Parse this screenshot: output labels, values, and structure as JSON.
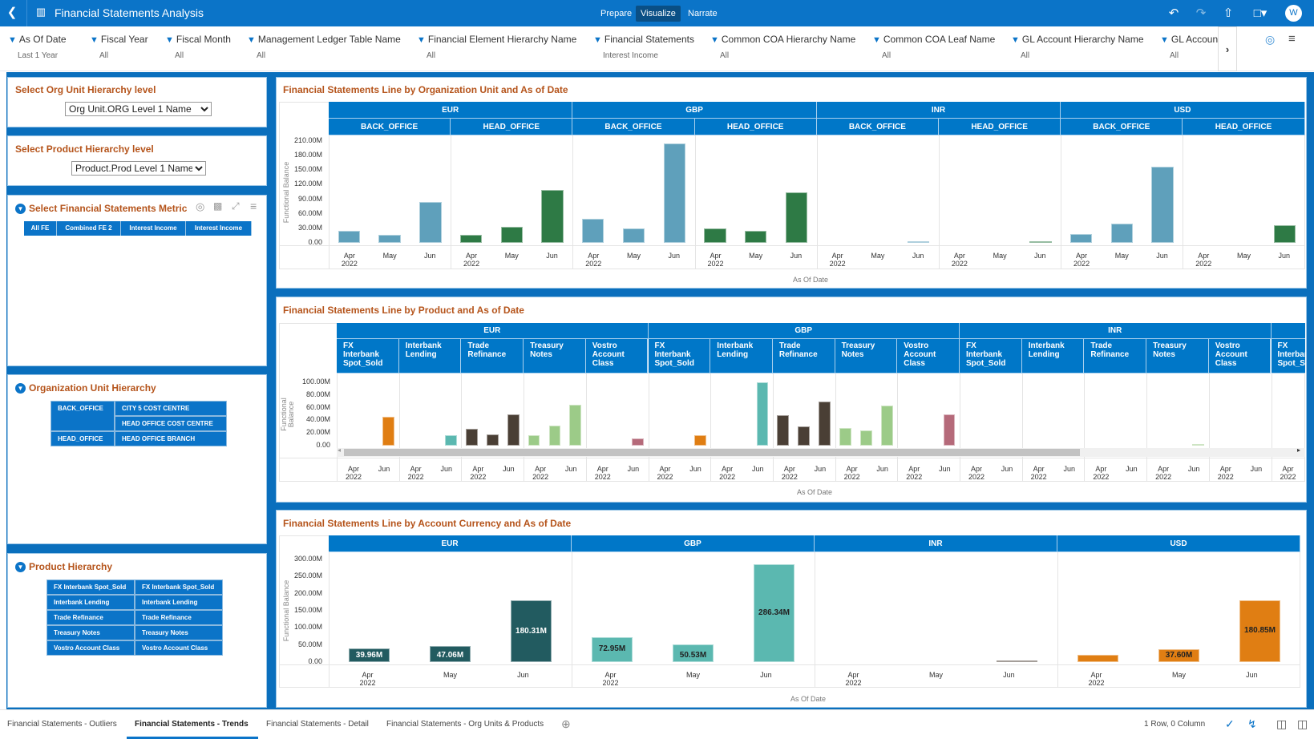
{
  "app": {
    "title": "Financial Statements Analysis",
    "modes": [
      "Prepare",
      "Visualize",
      "Narrate"
    ],
    "active_mode": "Visualize",
    "user_initial": "W"
  },
  "icons": {
    "back": "chevron-left-icon",
    "app": "chart-icon",
    "undo": "undo-icon",
    "redo": "redo-icon",
    "export": "export-icon",
    "save": "save-icon",
    "filter_pin": "pin-icon",
    "more_filters": "chevron-right-icon",
    "presentation": "badge-icon",
    "menu": "hamburger-icon"
  },
  "filters": [
    {
      "label": "As Of Date",
      "value": "Last 1 Year"
    },
    {
      "label": "Fiscal Year",
      "value": "All"
    },
    {
      "label": "Fiscal Month",
      "value": "All"
    },
    {
      "label": "Management Ledger Table Name",
      "value": "All"
    },
    {
      "label": "Financial Element Hierarchy Name",
      "value": "All"
    },
    {
      "label": "Financial Statements",
      "value": "Interest Income"
    },
    {
      "label": "Common COA Hierarchy Name",
      "value": "All"
    },
    {
      "label": "Common COA Leaf Name",
      "value": "All"
    },
    {
      "label": "GL Account Hierarchy Name",
      "value": "All"
    },
    {
      "label": "GL Account",
      "value": "All"
    }
  ],
  "left": {
    "org_level": {
      "title": "Select Org Unit Hierarchy level",
      "selected": "Org Unit.ORG Level 1 Name"
    },
    "product_level": {
      "title": "Select Product Hierarchy level",
      "selected": "Product.Prod Level 1 Name"
    },
    "metric": {
      "title": "Select Financial Statements Metric",
      "buttons": [
        "All FE",
        "Combined FE 2",
        "Interest Income",
        "Interest Income"
      ]
    },
    "org_hierarchy": {
      "title": "Organization Unit Hierarchy",
      "rows": [
        [
          "BACK_OFFICE",
          "CITY 5 COST CENTRE"
        ],
        [
          "",
          "HEAD OFFICE COST CENTRE"
        ],
        [
          "HEAD_OFFICE",
          "HEAD OFFICE BRANCH"
        ]
      ]
    },
    "product_hierarchy": {
      "title": "Product Hierarchy",
      "rows": [
        [
          "FX Interbank Spot_Sold",
          "FX Interbank Spot_Sold"
        ],
        [
          "Interbank Lending",
          "Interbank Lending"
        ],
        [
          "Trade Refinance",
          "Trade Refinance"
        ],
        [
          "Treasury Notes",
          "Treasury Notes"
        ],
        [
          "Vostro Account Class",
          "Vostro Account Class"
        ]
      ]
    }
  },
  "colors": {
    "accent": "#0b74c8",
    "header": "#0077c8",
    "title": "#b5541b",
    "BACK_OFFICE": "#5fa0bb",
    "HEAD_OFFICE": "#2e7a45",
    "FX Interbank Spot_Sold": "#e07e13",
    "Interbank Lending": "#5bb8b0",
    "Trade Refinance": "#4a3f35",
    "Treasury Notes": "#9ccb88",
    "Vostro Account Class": "#b56a7a",
    "EUR": "#225b60",
    "GBP": "#5bb8b0",
    "INR": "#4a3f35",
    "USD": "#e07e13"
  },
  "chart_data": [
    {
      "type": "bar",
      "title": "Financial Statements Line by Organization Unit and As of Date",
      "ylabel": "Functional Balance",
      "xlabel": "As Of Date",
      "ylim": [
        0,
        210
      ],
      "grid": false,
      "yticks": [
        {
          "value": 210,
          "label": "210.00M"
        },
        {
          "value": 180,
          "label": "180.00M"
        },
        {
          "value": 150,
          "label": "150.00M"
        },
        {
          "value": 120,
          "label": "120.00M"
        },
        {
          "value": 90,
          "label": "90.00M"
        },
        {
          "value": 60,
          "label": "60.00M"
        },
        {
          "value": 30,
          "label": "30.00M"
        },
        {
          "value": 0,
          "label": "0.00"
        }
      ],
      "x": [
        {
          "label": "Apr",
          "sub": "2022"
        },
        {
          "label": "May",
          "sub": ""
        },
        {
          "label": "Jun",
          "sub": ""
        }
      ],
      "groups": [
        {
          "name": "EUR",
          "subgroups": [
            {
              "name": "BACK_OFFICE",
              "values": [
                25,
                17,
                85
              ]
            },
            {
              "name": "HEAD_OFFICE",
              "values": [
                17,
                33,
                109
              ]
            }
          ]
        },
        {
          "name": "GBP",
          "subgroups": [
            {
              "name": "BACK_OFFICE",
              "values": [
                49,
                30,
                205
              ]
            },
            {
              "name": "HEAD_OFFICE",
              "values": [
                30,
                24,
                104
              ]
            }
          ]
        },
        {
          "name": "INR",
          "subgroups": [
            {
              "name": "BACK_OFFICE",
              "values": [
                null,
                null,
                1
              ]
            },
            {
              "name": "HEAD_OFFICE",
              "values": [
                null,
                null,
                1
              ]
            }
          ]
        },
        {
          "name": "USD",
          "subgroups": [
            {
              "name": "BACK_OFFICE",
              "values": [
                19,
                40,
                157
              ]
            },
            {
              "name": "HEAD_OFFICE",
              "values": [
                null,
                null,
                37
              ]
            }
          ]
        }
      ]
    },
    {
      "type": "bar",
      "title": "Financial Statements Line by Product and As of Date",
      "ylabel": "Functional Balance",
      "xlabel": "As Of Date",
      "ylim": [
        0,
        100
      ],
      "grid": false,
      "yticks": [
        {
          "value": 100,
          "label": "100.00M"
        },
        {
          "value": 80,
          "label": "80.00M"
        },
        {
          "value": 60,
          "label": "60.00M"
        },
        {
          "value": 40,
          "label": "40.00M"
        },
        {
          "value": 20,
          "label": "20.00M"
        },
        {
          "value": 0,
          "label": "0.00"
        }
      ],
      "x": [
        {
          "label": "Apr",
          "sub": "2022"
        },
        null,
        {
          "label": "Jun",
          "sub": ""
        }
      ],
      "groups": [
        {
          "name": "EUR",
          "subgroups": [
            {
              "name": "FX Interbank Spot_Sold",
              "values": [
                null,
                null,
                46
              ]
            },
            {
              "name": "Interbank Lending",
              "values": [
                null,
                null,
                16
              ]
            },
            {
              "name": "Trade Refinance",
              "values": [
                26,
                18,
                50
              ]
            },
            {
              "name": "Treasury Notes",
              "values": [
                16,
                32,
                64
              ]
            },
            {
              "name": "Vostro Account Class",
              "values": [
                null,
                null,
                12
              ]
            }
          ]
        },
        {
          "name": "GBP",
          "subgroups": [
            {
              "name": "FX Interbank Spot_Sold",
              "values": [
                null,
                null,
                16
              ]
            },
            {
              "name": "Interbank Lending",
              "values": [
                null,
                null,
                100
              ]
            },
            {
              "name": "Trade Refinance",
              "values": [
                48,
                30,
                70
              ]
            },
            {
              "name": "Treasury Notes",
              "values": [
                28,
                24,
                63
              ]
            },
            {
              "name": "Vostro Account Class",
              "values": [
                null,
                null,
                50
              ]
            }
          ]
        },
        {
          "name": "INR",
          "subgroups": [
            {
              "name": "FX Interbank Spot_Sold",
              "values": [
                null,
                null,
                null
              ]
            },
            {
              "name": "Interbank Lending",
              "values": [
                null,
                null,
                null
              ]
            },
            {
              "name": "Trade Refinance",
              "values": [
                null,
                null,
                null
              ]
            },
            {
              "name": "Treasury Notes",
              "values": [
                null,
                null,
                1
              ]
            },
            {
              "name": "Vostro Account Class",
              "values": [
                null,
                null,
                null
              ]
            }
          ]
        },
        {
          "name": "",
          "subgroups": [
            {
              "name": "FX Interbank Spot_Sold",
              "values": [
                null,
                null,
                null
              ]
            }
          ]
        }
      ]
    },
    {
      "type": "bar",
      "title": "Financial Statements Line by Account Currency and As of Date",
      "ylabel": "Functional Balance",
      "xlabel": "As Of Date",
      "ylim": [
        0,
        300
      ],
      "grid": false,
      "yticks": [
        {
          "value": 300,
          "label": "300.00M"
        },
        {
          "value": 250,
          "label": "250.00M"
        },
        {
          "value": 200,
          "label": "200.00M"
        },
        {
          "value": 150,
          "label": "150.00M"
        },
        {
          "value": 100,
          "label": "100.00M"
        },
        {
          "value": 50,
          "label": "50.00M"
        },
        {
          "value": 0,
          "label": "0.00"
        }
      ],
      "x": [
        {
          "label": "Apr",
          "sub": "2022"
        },
        {
          "label": "May",
          "sub": ""
        },
        {
          "label": "Jun",
          "sub": ""
        }
      ],
      "groups": [
        {
          "name": "EUR",
          "subgroups": [
            {
              "name": "EUR",
              "values": [
                39.96,
                47.06,
                180.31
              ],
              "labels": [
                "39.96M",
                "47.06M",
                "180.31M"
              ]
            }
          ]
        },
        {
          "name": "GBP",
          "subgroups": [
            {
              "name": "GBP",
              "values": [
                72.95,
                50.53,
                286.34
              ],
              "labels": [
                "72.95M",
                "50.53M",
                "286.34M"
              ]
            }
          ]
        },
        {
          "name": "INR",
          "subgroups": [
            {
              "name": "INR",
              "values": [
                null,
                null,
                2
              ],
              "labels": [
                null,
                null,
                null
              ]
            }
          ]
        },
        {
          "name": "USD",
          "subgroups": [
            {
              "name": "USD",
              "values": [
                20,
                37.6,
                180.85
              ],
              "labels": [
                null,
                "37.60M",
                "180.85M"
              ]
            }
          ]
        }
      ]
    }
  ],
  "bottom": {
    "tabs": [
      "Financial Statements - Outliers",
      "Financial Statements - Trends",
      "Financial Statements - Detail",
      "Financial Statements - Org Units & Products"
    ],
    "active_tab": 1,
    "status": "1 Row, 0 Column"
  }
}
